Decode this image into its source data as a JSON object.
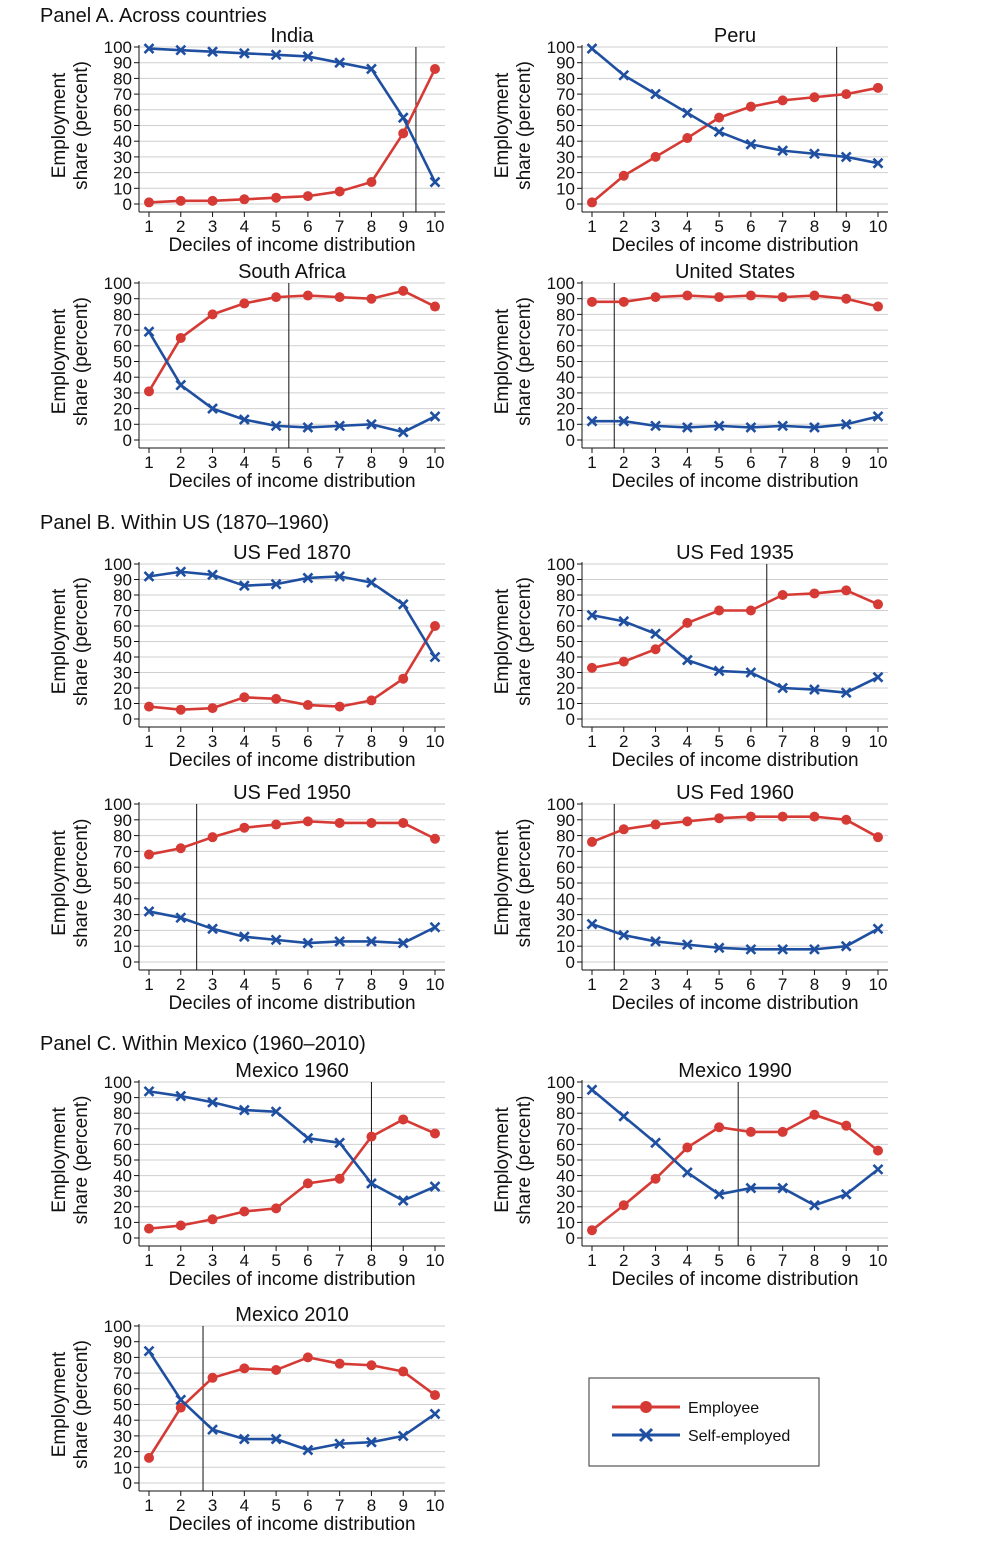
{
  "panels": [
    "Panel A. Across countries",
    "Panel B. Within US (1870–1960)",
    "Panel C. Within Mexico (1960–2010)"
  ],
  "legend": {
    "employee": "Employee",
    "self_employed": "Self-employed"
  },
  "colors": {
    "employee": "#d63a35",
    "self_employed": "#1f4fa0",
    "grid": "#cfcfcf"
  },
  "chart_data": [
    {
      "type": "line",
      "title": "India",
      "xlabel": "Deciles of income distribution",
      "ylabel": [
        "Employment",
        "share (percent)"
      ],
      "x": [
        1,
        2,
        3,
        4,
        5,
        6,
        7,
        8,
        9,
        10
      ],
      "ylim": [
        0,
        100
      ],
      "yticks": [
        0,
        10,
        20,
        30,
        40,
        50,
        60,
        70,
        80,
        90,
        100
      ],
      "vline": 9.4,
      "series": [
        {
          "name": "Employee",
          "marker": "circle",
          "values": [
            1,
            2,
            2,
            3,
            4,
            5,
            8,
            14,
            45,
            86
          ]
        },
        {
          "name": "Self-employed",
          "marker": "x",
          "values": [
            99,
            98,
            97,
            96,
            95,
            94,
            90,
            86,
            55,
            14
          ]
        }
      ]
    },
    {
      "type": "line",
      "title": "Peru",
      "xlabel": "Deciles of income distribution",
      "ylabel": [
        "Employment",
        "share (percent)"
      ],
      "x": [
        1,
        2,
        3,
        4,
        5,
        6,
        7,
        8,
        9,
        10
      ],
      "ylim": [
        0,
        100
      ],
      "yticks": [
        0,
        10,
        20,
        30,
        40,
        50,
        60,
        70,
        80,
        90,
        100
      ],
      "vline": 8.7,
      "series": [
        {
          "name": "Employee",
          "marker": "circle",
          "values": [
            1,
            18,
            30,
            42,
            55,
            62,
            66,
            68,
            70,
            74
          ]
        },
        {
          "name": "Self-employed",
          "marker": "x",
          "values": [
            99,
            82,
            70,
            58,
            46,
            38,
            34,
            32,
            30,
            26
          ]
        }
      ]
    },
    {
      "type": "line",
      "title": "South Africa",
      "xlabel": "Deciles of income distribution",
      "ylabel": [
        "Employment",
        "share (percent)"
      ],
      "x": [
        1,
        2,
        3,
        4,
        5,
        6,
        7,
        8,
        9,
        10
      ],
      "ylim": [
        0,
        100
      ],
      "yticks": [
        0,
        10,
        20,
        30,
        40,
        50,
        60,
        70,
        80,
        90,
        100
      ],
      "vline": 5.4,
      "series": [
        {
          "name": "Employee",
          "marker": "circle",
          "values": [
            31,
            65,
            80,
            87,
            91,
            92,
            91,
            90,
            95,
            85
          ]
        },
        {
          "name": "Self-employed",
          "marker": "x",
          "values": [
            69,
            35,
            20,
            13,
            9,
            8,
            9,
            10,
            5,
            15
          ]
        }
      ]
    },
    {
      "type": "line",
      "title": "United States",
      "xlabel": "Deciles of income distribution",
      "ylabel": [
        "Employment",
        "share (percent)"
      ],
      "x": [
        1,
        2,
        3,
        4,
        5,
        6,
        7,
        8,
        9,
        10
      ],
      "ylim": [
        0,
        100
      ],
      "yticks": [
        0,
        10,
        20,
        30,
        40,
        50,
        60,
        70,
        80,
        90,
        100
      ],
      "vline": 1.7,
      "series": [
        {
          "name": "Employee",
          "marker": "circle",
          "values": [
            88,
            88,
            91,
            92,
            91,
            92,
            91,
            92,
            90,
            85
          ]
        },
        {
          "name": "Self-employed",
          "marker": "x",
          "values": [
            12,
            12,
            9,
            8,
            9,
            8,
            9,
            8,
            10,
            15
          ]
        }
      ]
    },
    {
      "type": "line",
      "title": "US Fed 1870",
      "xlabel": "Deciles of income distribution",
      "ylabel": [
        "Employment",
        "share (percent)"
      ],
      "x": [
        1,
        2,
        3,
        4,
        5,
        6,
        7,
        8,
        9,
        10
      ],
      "ylim": [
        0,
        100
      ],
      "yticks": [
        0,
        10,
        20,
        30,
        40,
        50,
        60,
        70,
        80,
        90,
        100
      ],
      "vline": null,
      "series": [
        {
          "name": "Employee",
          "marker": "circle",
          "values": [
            8,
            6,
            7,
            14,
            13,
            9,
            8,
            12,
            26,
            60
          ]
        },
        {
          "name": "Self-employed",
          "marker": "x",
          "values": [
            92,
            95,
            93,
            86,
            87,
            91,
            92,
            88,
            74,
            40
          ]
        }
      ]
    },
    {
      "type": "line",
      "title": "US Fed 1935",
      "xlabel": "Deciles of income distribution",
      "ylabel": [
        "Employment",
        "share (percent)"
      ],
      "x": [
        1,
        2,
        3,
        4,
        5,
        6,
        7,
        8,
        9,
        10
      ],
      "ylim": [
        0,
        100
      ],
      "yticks": [
        0,
        10,
        20,
        30,
        40,
        50,
        60,
        70,
        80,
        90,
        100
      ],
      "vline": 6.5,
      "series": [
        {
          "name": "Employee",
          "marker": "circle",
          "values": [
            33,
            37,
            45,
            62,
            70,
            70,
            80,
            81,
            83,
            74
          ]
        },
        {
          "name": "Self-employed",
          "marker": "x",
          "values": [
            67,
            63,
            55,
            38,
            31,
            30,
            20,
            19,
            17,
            27
          ]
        }
      ]
    },
    {
      "type": "line",
      "title": "US Fed 1950",
      "xlabel": "Deciles of income distribution",
      "ylabel": [
        "Employment",
        "share (percent)"
      ],
      "x": [
        1,
        2,
        3,
        4,
        5,
        6,
        7,
        8,
        9,
        10
      ],
      "ylim": [
        0,
        100
      ],
      "yticks": [
        0,
        10,
        20,
        30,
        40,
        50,
        60,
        70,
        80,
        90,
        100
      ],
      "vline": 2.5,
      "series": [
        {
          "name": "Employee",
          "marker": "circle",
          "values": [
            68,
            72,
            79,
            85,
            87,
            89,
            88,
            88,
            88,
            78
          ]
        },
        {
          "name": "Self-employed",
          "marker": "x",
          "values": [
            32,
            28,
            21,
            16,
            14,
            12,
            13,
            13,
            12,
            22
          ]
        }
      ]
    },
    {
      "type": "line",
      "title": "US Fed 1960",
      "xlabel": "Deciles of income distribution",
      "ylabel": [
        "Employment",
        "share (percent)"
      ],
      "x": [
        1,
        2,
        3,
        4,
        5,
        6,
        7,
        8,
        9,
        10
      ],
      "ylim": [
        0,
        100
      ],
      "yticks": [
        0,
        10,
        20,
        30,
        40,
        50,
        60,
        70,
        80,
        90,
        100
      ],
      "vline": 1.7,
      "series": [
        {
          "name": "Employee",
          "marker": "circle",
          "values": [
            76,
            84,
            87,
            89,
            91,
            92,
            92,
            92,
            90,
            79
          ]
        },
        {
          "name": "Self-employed",
          "marker": "x",
          "values": [
            24,
            17,
            13,
            11,
            9,
            8,
            8,
            8,
            10,
            21
          ]
        }
      ]
    },
    {
      "type": "line",
      "title": "Mexico 1960",
      "xlabel": "Deciles of income distribution",
      "ylabel": [
        "Employment",
        "share (percent)"
      ],
      "x": [
        1,
        2,
        3,
        4,
        5,
        6,
        7,
        8,
        9,
        10
      ],
      "ylim": [
        0,
        100
      ],
      "yticks": [
        0,
        10,
        20,
        30,
        40,
        50,
        60,
        70,
        80,
        90,
        100
      ],
      "vline": 8.0,
      "series": [
        {
          "name": "Employee",
          "marker": "circle",
          "values": [
            6,
            8,
            12,
            17,
            19,
            35,
            38,
            65,
            76,
            67
          ]
        },
        {
          "name": "Self-employed",
          "marker": "x",
          "values": [
            94,
            91,
            87,
            82,
            81,
            64,
            61,
            35,
            24,
            33
          ]
        }
      ]
    },
    {
      "type": "line",
      "title": "Mexico 1990",
      "xlabel": "Deciles of income distribution",
      "ylabel": [
        "Employment",
        "share (percent)"
      ],
      "x": [
        1,
        2,
        3,
        4,
        5,
        6,
        7,
        8,
        9,
        10
      ],
      "ylim": [
        0,
        100
      ],
      "yticks": [
        0,
        10,
        20,
        30,
        40,
        50,
        60,
        70,
        80,
        90,
        100
      ],
      "vline": 5.6,
      "series": [
        {
          "name": "Employee",
          "marker": "circle",
          "values": [
            5,
            21,
            38,
            58,
            71,
            68,
            68,
            79,
            72,
            56
          ]
        },
        {
          "name": "Self-employed",
          "marker": "x",
          "values": [
            95,
            78,
            61,
            42,
            28,
            32,
            32,
            21,
            28,
            44
          ]
        }
      ]
    },
    {
      "type": "line",
      "title": "Mexico 2010",
      "xlabel": "Deciles of income distribution",
      "ylabel": [
        "Employment",
        "share (percent)"
      ],
      "x": [
        1,
        2,
        3,
        4,
        5,
        6,
        7,
        8,
        9,
        10
      ],
      "ylim": [
        0,
        100
      ],
      "yticks": [
        0,
        10,
        20,
        30,
        40,
        50,
        60,
        70,
        80,
        90,
        100
      ],
      "vline": 2.7,
      "series": [
        {
          "name": "Employee",
          "marker": "circle",
          "values": [
            16,
            48,
            67,
            73,
            72,
            80,
            76,
            75,
            71,
            56
          ]
        },
        {
          "name": "Self-employed",
          "marker": "x",
          "values": [
            84,
            53,
            34,
            28,
            28,
            21,
            25,
            26,
            30,
            44
          ]
        }
      ]
    }
  ]
}
